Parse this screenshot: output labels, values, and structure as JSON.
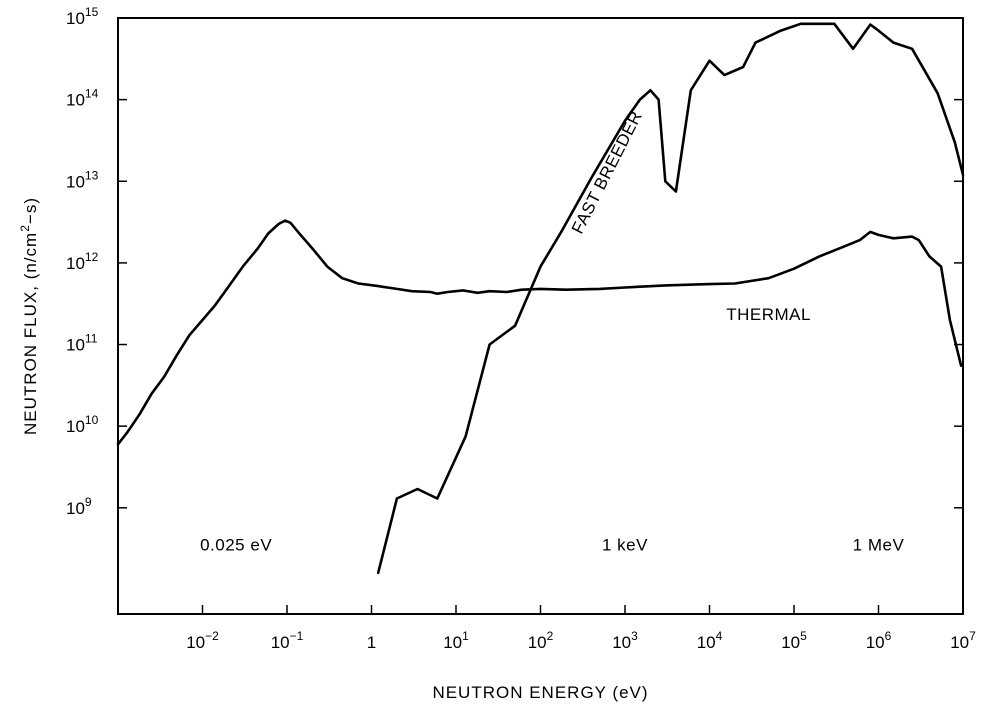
{
  "chart_data": {
    "type": "line",
    "xscale": "log",
    "yscale": "log",
    "xlim": [
      0.001,
      10000000
    ],
    "ylim": [
      50000000,
      1000000000000000
    ],
    "grid": false,
    "legend": "none",
    "xlabel": "NEUTRON ENERGY (eV)",
    "ylabel_parts": {
      "before": "NEUTRON FLUX, (n/cm",
      "sup": "2",
      "after": "−s)"
    },
    "x_ticks": [
      {
        "value": 0.01,
        "base": "10",
        "exp": "−2"
      },
      {
        "value": 0.1,
        "base": "10",
        "exp": "−1"
      },
      {
        "value": 1,
        "base": "1",
        "exp": ""
      },
      {
        "value": 10,
        "base": "10",
        "exp": "1"
      },
      {
        "value": 100,
        "base": "10",
        "exp": "2"
      },
      {
        "value": 1000,
        "base": "10",
        "exp": "3"
      },
      {
        "value": 10000,
        "base": "10",
        "exp": "4"
      },
      {
        "value": 100000,
        "base": "10",
        "exp": "5"
      },
      {
        "value": 1000000,
        "base": "10",
        "exp": "6"
      },
      {
        "value": 10000000,
        "base": "10",
        "exp": "7"
      }
    ],
    "y_ticks": [
      {
        "value": 1000000000,
        "base": "10",
        "exp": "9"
      },
      {
        "value": 10000000000,
        "base": "10",
        "exp": "10"
      },
      {
        "value": 100000000000,
        "base": "10",
        "exp": "11"
      },
      {
        "value": 1000000000000,
        "base": "10",
        "exp": "12"
      },
      {
        "value": 10000000000000,
        "base": "10",
        "exp": "13"
      },
      {
        "value": 100000000000000,
        "base": "10",
        "exp": "14"
      },
      {
        "value": 1000000000000000,
        "base": "10",
        "exp": "15"
      }
    ],
    "annotations": [
      {
        "text": "0.025 eV",
        "x": 0.025,
        "y": 300000000
      },
      {
        "text": "1 keV",
        "x": 1000,
        "y": 300000000
      },
      {
        "text": "1 MeV",
        "x": 1000000,
        "y": 300000000
      },
      {
        "text": "THERMAL",
        "x": 50000,
        "y": 200000000000
      },
      {
        "text": "FAST BREEDER",
        "x": 700,
        "y": 12000000000000,
        "rotate": -63
      }
    ],
    "series": [
      {
        "name": "THERMAL",
        "points": [
          [
            0.001,
            6000000000
          ],
          [
            0.0013,
            8500000000
          ],
          [
            0.0018,
            14000000000
          ],
          [
            0.0025,
            25000000000
          ],
          [
            0.0035,
            40000000000
          ],
          [
            0.005,
            75000000000
          ],
          [
            0.007,
            130000000000
          ],
          [
            0.01,
            200000000000
          ],
          [
            0.014,
            300000000000
          ],
          [
            0.02,
            500000000000
          ],
          [
            0.03,
            900000000000
          ],
          [
            0.045,
            1500000000000
          ],
          [
            0.06,
            2300000000000
          ],
          [
            0.08,
            3000000000000
          ],
          [
            0.095,
            3300000000000
          ],
          [
            0.11,
            3100000000000
          ],
          [
            0.14,
            2300000000000
          ],
          [
            0.2,
            1500000000000
          ],
          [
            0.3,
            900000000000
          ],
          [
            0.45,
            650000000000
          ],
          [
            0.7,
            560000000000
          ],
          [
            1.2,
            520000000000
          ],
          [
            2,
            480000000000
          ],
          [
            3,
            450000000000
          ],
          [
            5,
            440000000000
          ],
          [
            6,
            420000000000
          ],
          [
            8,
            440000000000
          ],
          [
            12,
            460000000000
          ],
          [
            18,
            430000000000
          ],
          [
            25,
            450000000000
          ],
          [
            40,
            440000000000
          ],
          [
            60,
            470000000000
          ],
          [
            100,
            480000000000
          ],
          [
            200,
            470000000000
          ],
          [
            500,
            480000000000
          ],
          [
            1000,
            500000000000
          ],
          [
            3000,
            530000000000
          ],
          [
            10000,
            550000000000
          ],
          [
            20000,
            560000000000
          ],
          [
            50000,
            650000000000
          ],
          [
            100000,
            850000000000
          ],
          [
            200000,
            1200000000000
          ],
          [
            400000,
            1600000000000
          ],
          [
            600000,
            1900000000000
          ],
          [
            800000,
            2400000000000
          ],
          [
            1000000,
            2200000000000
          ],
          [
            1500000,
            2000000000000
          ],
          [
            2500000,
            2100000000000
          ],
          [
            3000000,
            1900000000000
          ],
          [
            4000000,
            1200000000000
          ],
          [
            5500000,
            900000000000
          ],
          [
            7000000,
            200000000000
          ],
          [
            9500000,
            55000000000
          ]
        ]
      },
      {
        "name": "FAST BREEDER",
        "points": [
          [
            1.2,
            160000000
          ],
          [
            2,
            1300000000
          ],
          [
            3.5,
            1700000000
          ],
          [
            6,
            1300000000
          ],
          [
            13,
            7500000000
          ],
          [
            25,
            100000000000
          ],
          [
            50,
            170000000000
          ],
          [
            100,
            900000000000
          ],
          [
            180,
            2500000000000
          ],
          [
            400,
            11000000000000
          ],
          [
            1000,
            55000000000000
          ],
          [
            1500,
            100000000000000
          ],
          [
            2000,
            130000000000000
          ],
          [
            2500,
            100000000000000
          ],
          [
            3000,
            10000000000000
          ],
          [
            4000,
            7500000000000
          ],
          [
            6000,
            130000000000000
          ],
          [
            10000,
            300000000000000
          ],
          [
            15000,
            200000000000000
          ],
          [
            25000,
            250000000000000
          ],
          [
            35000,
            500000000000000
          ],
          [
            70000,
            700000000000000
          ],
          [
            120000,
            850000000000000
          ],
          [
            300000,
            850000000000000
          ],
          [
            500000,
            420000000000000
          ],
          [
            800000,
            830000000000000
          ],
          [
            1000000,
            700000000000000
          ],
          [
            1500000,
            500000000000000
          ],
          [
            2500000,
            420000000000000
          ],
          [
            5000000,
            120000000000000
          ],
          [
            8000000,
            30000000000000
          ],
          [
            10000000,
            12000000000000
          ]
        ]
      }
    ]
  }
}
